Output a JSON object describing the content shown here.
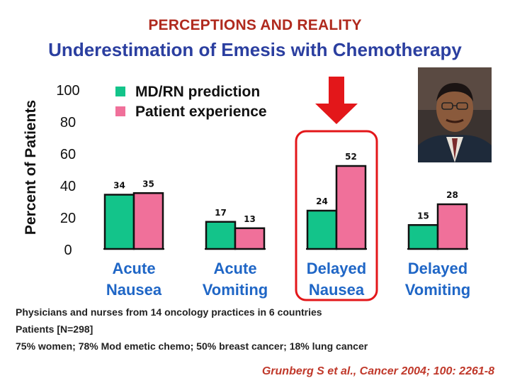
{
  "header": {
    "title": "PERCEPTIONS AND REALITY",
    "subtitle": "Underestimation of Emesis with Chemotherapy"
  },
  "chart_data": {
    "type": "bar",
    "ylabel": "Percent of Patients",
    "ylim": [
      0,
      100
    ],
    "yticks": [
      0,
      20,
      40,
      60,
      80,
      100
    ],
    "categories": [
      [
        "Acute",
        "Nausea"
      ],
      [
        "Acute",
        "Vomiting"
      ],
      [
        "Delayed",
        "Nausea"
      ],
      [
        "Delayed",
        "Vomiting"
      ]
    ],
    "series": [
      {
        "name": "MD/RN prediction",
        "color": "#13c48a",
        "values": [
          34,
          17,
          24,
          15
        ]
      },
      {
        "name": "Patient experience",
        "color": "#f0709a",
        "values": [
          35,
          13,
          52,
          28
        ]
      }
    ],
    "highlight_category": 2,
    "highlight_color": "#e3171a",
    "arrow_color": "#e3171a",
    "category_label_color": "#1f66c6"
  },
  "notes": [
    "Physicians and nurses from 14 oncology practices in 6 countries",
    "Patients [N=298]",
    "75% women; 78% Mod emetic chemo; 50% breast cancer; 18% lung cancer"
  ],
  "citation": "Grunberg S et al., Cancer 2004; 100: 2261-8"
}
